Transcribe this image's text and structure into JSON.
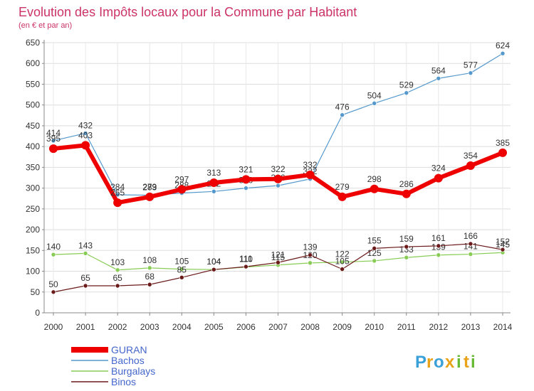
{
  "title": "Evolution des Impôts locaux pour la Commune par Habitant",
  "subtitle": "(en € et par an)",
  "brand": {
    "letters": [
      "P",
      "r",
      "o",
      "x",
      "i",
      "t",
      "i"
    ],
    "colors": [
      "#3aa0d8",
      "#e8a317",
      "#3aa0d8",
      "#e8a317",
      "#66bb33",
      "#e8a317",
      "#66bb33"
    ]
  },
  "chart_data": {
    "type": "line",
    "x": [
      "2000",
      "2001",
      "2002",
      "2003",
      "2004",
      "2005",
      "2006",
      "2007",
      "2008",
      "2009",
      "2010",
      "2011",
      "2012",
      "2013",
      "2014"
    ],
    "yticks": [
      "0",
      "50",
      "100",
      "150",
      "200",
      "250",
      "300",
      "350",
      "400",
      "450",
      "500",
      "550",
      "600",
      "650"
    ],
    "ylim": [
      0,
      650
    ],
    "grid": true,
    "legend_position": "bottom-left",
    "series": [
      {
        "name": "Bachos",
        "color": "#5599cc",
        "width": 1.2,
        "marker": 3,
        "values": [
          414,
          432,
          284,
          283,
          288,
          292,
          300,
          306,
          322,
          476,
          504,
          529,
          564,
          577,
          624
        ],
        "labels": [
          "414",
          "432",
          "284",
          "283",
          "288",
          "292",
          "300",
          "306",
          "322",
          "476",
          "504",
          "529",
          "564",
          "577",
          "624"
        ]
      },
      {
        "name": "Burgalays",
        "color": "#88cc55",
        "width": 1.2,
        "marker": 3,
        "values": [
          140,
          143,
          103,
          108,
          105,
          104,
          110,
          115,
          120,
          122,
          125,
          133,
          139,
          141,
          145
        ],
        "labels": [
          "140",
          "143",
          "103",
          "108",
          "105",
          "104",
          "110",
          "115",
          "120",
          "122",
          "125",
          "133",
          "139",
          "141",
          "145"
        ]
      },
      {
        "name": "Binos",
        "color": "#6b1a1a",
        "width": 1.2,
        "marker": 3,
        "values": [
          50,
          65,
          65,
          68,
          85,
          104,
          111,
          121,
          139,
          105,
          155,
          159,
          161,
          166,
          152
        ],
        "labels": [
          "50",
          "65",
          "65",
          "68",
          "85",
          "104",
          "111",
          "121",
          "139",
          "105",
          "155",
          "159",
          "161",
          "166",
          "152"
        ]
      },
      {
        "name": "GURAN",
        "color": "#ee0000",
        "width": 6,
        "marker": 6,
        "values": [
          395,
          403,
          265,
          279,
          297,
          313,
          321,
          322,
          332,
          279,
          298,
          286,
          324,
          354,
          385
        ],
        "labels": [
          "395",
          "403",
          "265",
          "279",
          "297",
          "313",
          "321",
          "322",
          "332",
          "279",
          "298",
          "286",
          "324",
          "354",
          "385"
        ]
      }
    ]
  }
}
